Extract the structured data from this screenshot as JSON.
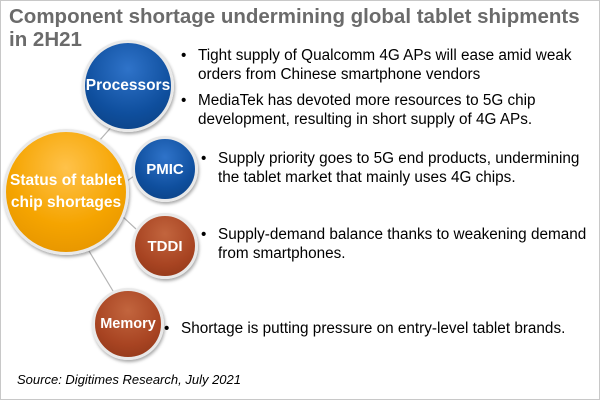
{
  "title": {
    "line1": "Component shortage undermining global tablet shipments",
    "line2": "in 2H21"
  },
  "hub": {
    "line1": "Status of tablet",
    "line2": "chip shortages",
    "color": "#f5a400"
  },
  "components": [
    {
      "label": "Processors",
      "color": "#0f4f9e",
      "notes": [
        {
          "line1": "Tight supply of Qualcomm 4G APs will ease amid weak",
          "line2": "orders from Chinese smartphone vendors"
        },
        {
          "line1": "MediaTek has devoted more resources  to 5G chip",
          "line2": "development, resulting in short supply of 4G APs."
        }
      ]
    },
    {
      "label": "PMIC",
      "color": "#0f4f9e",
      "notes": [
        {
          "line1": "Supply priority goes to 5G end products, undermining",
          "line2": "the tablet market that mainly uses 4G chips."
        }
      ]
    },
    {
      "label": "TDDI",
      "color": "#a84422",
      "notes": [
        {
          "line1": "Supply-demand balance thanks to weakening demand",
          "line2": "from smartphones."
        }
      ]
    },
    {
      "label": "Memory",
      "color": "#a84422",
      "notes": [
        {
          "line1": "Shortage is putting pressure on entry-level tablet brands."
        }
      ]
    }
  ],
  "bullet_symbol": "•",
  "source": "Source: Digitimes Research, July 2021"
}
